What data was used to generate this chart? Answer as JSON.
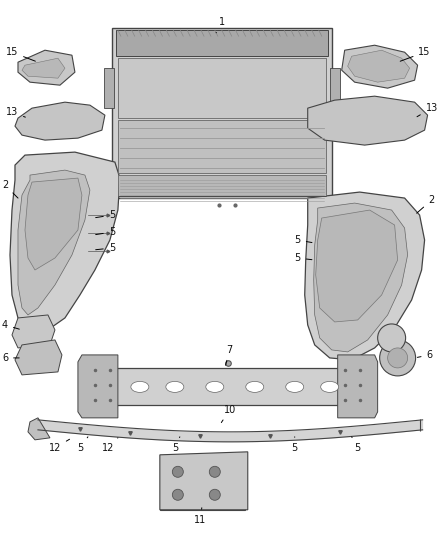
{
  "bg_color": "#ffffff",
  "figsize": [
    4.38,
    5.33
  ],
  "dpi": 100,
  "label_fontsize": 7.0,
  "label_color": "#111111",
  "line_color": "#000000",
  "part_edge": "#444444",
  "part_fill": "#d8d8d8",
  "part_fill_dark": "#b0b0b0",
  "part_fill_light": "#e8e8e8"
}
